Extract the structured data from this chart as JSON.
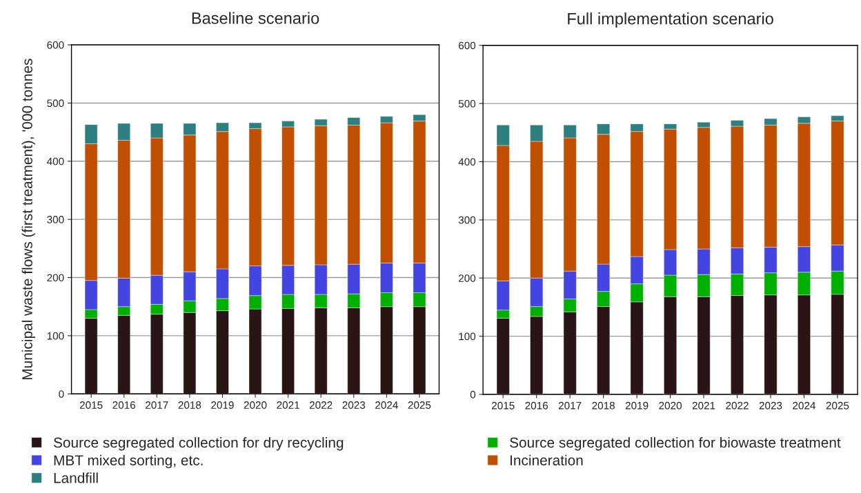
{
  "chart_data": [
    {
      "type": "bar",
      "stacked": true,
      "title": "Baseline scenario",
      "ylabel": "Municipal waste flows (first treatment), '000 tonnes",
      "categories": [
        "2015",
        "2016",
        "2017",
        "2018",
        "2019",
        "2020",
        "2021",
        "2022",
        "2023",
        "2024",
        "2025"
      ],
      "ylim": [
        0,
        600
      ],
      "yticks": [
        0,
        100,
        200,
        300,
        400,
        500,
        600
      ],
      "grid": "y",
      "legend": "bottom",
      "series": [
        {
          "name": "Source segregated collection for dry recycling",
          "color": "#2a1516",
          "values": [
            130,
            135,
            137,
            140,
            143,
            146,
            147,
            148,
            148,
            150,
            150
          ]
        },
        {
          "name": "Source segregated collection for biowaste treatment",
          "color": "#00b000",
          "values": [
            15,
            15,
            17,
            20,
            21,
            23,
            24,
            23,
            24,
            24,
            24
          ]
        },
        {
          "name": "MBT mixed sorting, etc.",
          "color": "#4444e0",
          "values": [
            50,
            49,
            50,
            50,
            51,
            51,
            50,
            51,
            51,
            51,
            51
          ]
        },
        {
          "name": "Incineration",
          "color": "#c04f00",
          "values": [
            235,
            237,
            236,
            235,
            236,
            236,
            238,
            239,
            239,
            241,
            244
          ]
        },
        {
          "name": "Landfill",
          "color": "#2e7f7f",
          "values": [
            33,
            29,
            25,
            20,
            15,
            10,
            10,
            11,
            13,
            11,
            11
          ]
        }
      ]
    },
    {
      "type": "bar",
      "stacked": true,
      "title": "Full implementation scenario",
      "categories": [
        "2015",
        "2016",
        "2017",
        "2018",
        "2019",
        "2020",
        "2021",
        "2022",
        "2023",
        "2024",
        "2025"
      ],
      "ylim": [
        0,
        600
      ],
      "yticks": [
        0,
        100,
        200,
        300,
        400,
        500,
        600
      ],
      "grid": "y",
      "series": [
        {
          "color": "#2a1516",
          "values": [
            131,
            134,
            142,
            151,
            159,
            168,
            168,
            170,
            171,
            171,
            172
          ]
        },
        {
          "color": "#00b000",
          "values": [
            14,
            17,
            22,
            26,
            31,
            37,
            38,
            37,
            38,
            39,
            40
          ]
        },
        {
          "color": "#4444e0",
          "values": [
            50,
            49,
            48,
            47,
            47,
            44,
            44,
            45,
            44,
            44,
            45
          ]
        },
        {
          "color": "#c04f00",
          "values": [
            233,
            235,
            229,
            223,
            215,
            207,
            209,
            209,
            210,
            212,
            213
          ]
        },
        {
          "color": "#2e7f7f",
          "values": [
            35,
            28,
            22,
            18,
            13,
            9,
            9,
            10,
            11,
            11,
            9
          ]
        }
      ]
    }
  ]
}
